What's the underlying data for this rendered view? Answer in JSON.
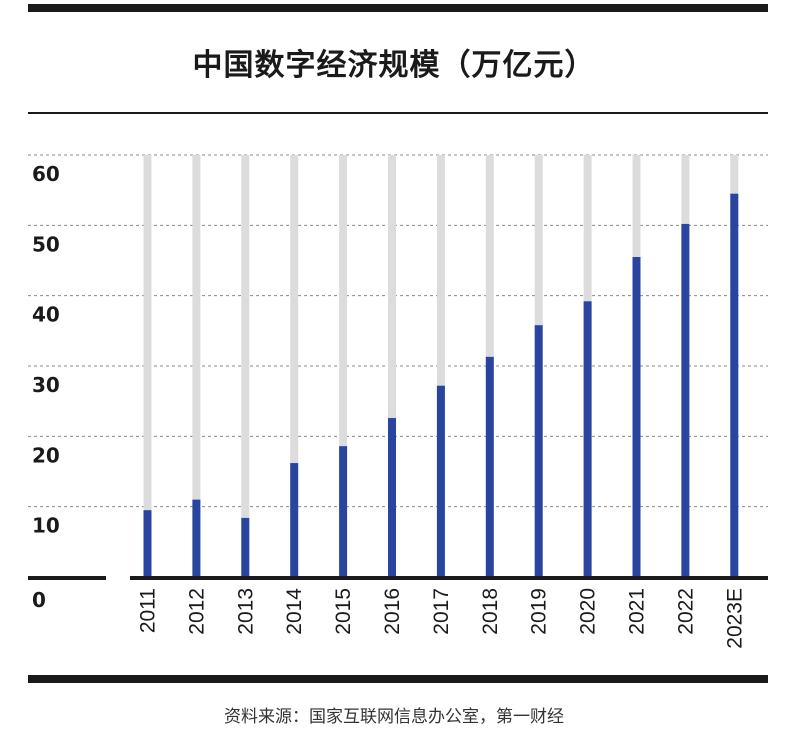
{
  "chart_title": "中国数字经济规模（万亿元）",
  "source": "资料来源：国家互联网信息办公室，第一财经",
  "colors": {
    "bar": "#2a45a0",
    "track": "#dcdcdc",
    "grid": "#888888",
    "rule": "#1a1a1a"
  },
  "chart_data": {
    "type": "bar",
    "title": "中国数字经济规模（万亿元）",
    "xlabel": "",
    "ylabel": "",
    "ylim": [
      0,
      60
    ],
    "yticks": [
      0,
      10,
      20,
      30,
      40,
      50,
      60
    ],
    "ytick_labels": [
      "0",
      "10",
      "20",
      "30",
      "40",
      "50",
      "60"
    ],
    "grid": true,
    "categories": [
      "2011",
      "2012",
      "2013",
      "2014",
      "2015",
      "2016",
      "2017",
      "2018",
      "2019",
      "2020",
      "2021",
      "2022",
      "2023E"
    ],
    "values": [
      9.5,
      11,
      8.4,
      16.2,
      18.6,
      22.6,
      27.2,
      31.3,
      35.8,
      39.2,
      45.5,
      50.2,
      54.5
    ]
  }
}
